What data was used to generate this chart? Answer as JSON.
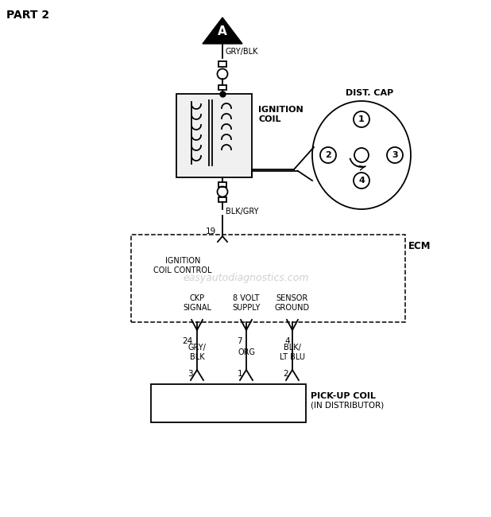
{
  "title": "PART 2",
  "bg_color": "#ffffff",
  "line_color": "#000000",
  "text_color": "#000000",
  "watermark": "easyautodiagnostics.com",
  "watermark_color": "#c8c8c8",
  "gry_blk_label": "GRY/BLK",
  "blk_gry_label": "BLK/GRY",
  "ignition_coil_label": "IGNITION\nCOIL",
  "dist_cap_label": "DIST. CAP",
  "ecm_label": "ECM",
  "ignition_coil_control_label": "IGNITION\nCOIL CONTROL",
  "ckp_signal_label": "CKP\nSIGNAL",
  "volt_supply_label": "8 VOLT\nSUPPLY",
  "sensor_ground_label": "SENSOR\nGROUND",
  "pickup_coil_label": "PICK-UP COIL",
  "pickup_coil_label2": "(IN DISTRIBUTOR)",
  "pin19": "19",
  "pin24": "24",
  "pin7": "7",
  "pin4": "4",
  "pin3": "3",
  "pin1": "1",
  "pin2": "2",
  "gry_blk2": "GRY/\nBLK",
  "org": "ORG",
  "blk_lt_blu": "BLK/\nLT BLU",
  "dist_numbers": [
    "1",
    "2",
    "3",
    "4"
  ]
}
